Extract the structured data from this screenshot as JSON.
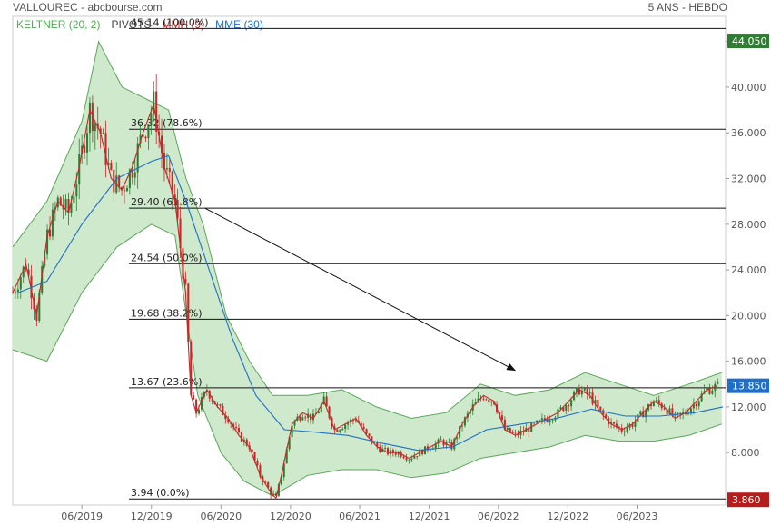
{
  "header": {
    "title": "VALLOUREC - abcbourse.com",
    "period": "5 ANS - HEBDO",
    "legend": [
      {
        "label": "KELTNER (20, 2)",
        "color": "#4caf50"
      },
      {
        "label": "PIVOTS",
        "color": "#444444"
      },
      {
        "label": "MMH (9)",
        "color": "#c62828"
      },
      {
        "label": "MME (30)",
        "color": "#1e6fc8"
      }
    ]
  },
  "colors": {
    "keltner_fill": "#cfe9cc",
    "keltner_line": "#5aa65a",
    "candle_up": "#2e7d32",
    "candle_down": "#c62828",
    "mmh": "#c62828",
    "mme": "#1e6fc8",
    "badge_high": "#2e7d32",
    "badge_last": "#1e6fc8",
    "badge_low": "#b71c1c"
  },
  "chart_data": {
    "type": "candlestick",
    "ylim": [
      3.4,
      46.2
    ],
    "xlim": [
      "2018-12-01",
      "2024-01-20"
    ],
    "y_ticks": [
      "8.000",
      "12.000",
      "16.000",
      "20.000",
      "24.000",
      "28.000",
      "32.000",
      "36.000",
      "40.000",
      "44.000"
    ],
    "x_ticks": [
      "06/2019",
      "12/2019",
      "06/2020",
      "12/2020",
      "06/2021",
      "12/2021",
      "06/2022",
      "12/2022",
      "06/2023"
    ],
    "fib_levels": [
      {
        "value": 45.14,
        "label": "45.14  (100.0%)"
      },
      {
        "value": 36.32,
        "label": "36.32  (78.6%)"
      },
      {
        "value": 29.4,
        "label": "29.40  (61.8%)"
      },
      {
        "value": 24.54,
        "label": "24.54  (50.0%)"
      },
      {
        "value": 19.68,
        "label": "19.68  (38.2%)"
      },
      {
        "value": 13.67,
        "label": "13.67  (23.6%)"
      },
      {
        "value": 3.94,
        "label": "3.94  (0.0%)"
      }
    ],
    "price_badges": [
      {
        "label": "44.050",
        "value": 44.05,
        "role": "high"
      },
      {
        "label": "13.850",
        "value": 13.85,
        "role": "last"
      },
      {
        "label": "3.860",
        "value": 3.86,
        "role": "low"
      }
    ],
    "trend_arrow": {
      "from": [
        "2020-04-20",
        29.4
      ],
      "to": [
        "2022-07-15",
        15.2
      ]
    },
    "close_path": [
      [
        "2018-12-01",
        22.0
      ],
      [
        "2019-01-05",
        24.5
      ],
      [
        "2019-02-02",
        20.0
      ],
      [
        "2019-03-02",
        27.0
      ],
      [
        "2019-03-30",
        30.0
      ],
      [
        "2019-04-27",
        29.0
      ],
      [
        "2019-05-25",
        33.0
      ],
      [
        "2019-06-22",
        38.0
      ],
      [
        "2019-07-20",
        36.0
      ],
      [
        "2019-08-17",
        32.0
      ],
      [
        "2019-09-14",
        31.0
      ],
      [
        "2019-10-12",
        33.0
      ],
      [
        "2019-11-09",
        36.0
      ],
      [
        "2019-12-07",
        38.5
      ],
      [
        "2020-01-04",
        33.0
      ],
      [
        "2020-02-01",
        30.0
      ],
      [
        "2020-02-29",
        22.0
      ],
      [
        "2020-03-14",
        13.0
      ],
      [
        "2020-03-28",
        11.5
      ],
      [
        "2020-04-25",
        13.5
      ],
      [
        "2020-05-23",
        12.0
      ],
      [
        "2020-06-20",
        11.0
      ],
      [
        "2020-07-18",
        9.5
      ],
      [
        "2020-08-15",
        8.5
      ],
      [
        "2020-09-12",
        6.0
      ],
      [
        "2020-10-10",
        4.5
      ],
      [
        "2020-10-24",
        4.0
      ],
      [
        "2020-11-07",
        6.0
      ],
      [
        "2020-12-05",
        10.5
      ],
      [
        "2021-01-02",
        11.5
      ],
      [
        "2021-01-30",
        11.0
      ],
      [
        "2021-02-27",
        12.5
      ],
      [
        "2021-03-27",
        10.0
      ],
      [
        "2021-04-24",
        10.5
      ],
      [
        "2021-05-22",
        11.0
      ],
      [
        "2021-06-19",
        9.5
      ],
      [
        "2021-07-17",
        8.5
      ],
      [
        "2021-08-14",
        8.0
      ],
      [
        "2021-09-11",
        8.0
      ],
      [
        "2021-10-09",
        7.5
      ],
      [
        "2021-11-06",
        8.0
      ],
      [
        "2021-12-04",
        8.5
      ],
      [
        "2022-01-01",
        9.0
      ],
      [
        "2022-01-29",
        8.5
      ],
      [
        "2022-02-26",
        10.5
      ],
      [
        "2022-03-26",
        12.0
      ],
      [
        "2022-04-23",
        13.0
      ],
      [
        "2022-05-21",
        12.5
      ],
      [
        "2022-06-18",
        10.0
      ],
      [
        "2022-07-16",
        9.5
      ],
      [
        "2022-08-13",
        10.0
      ],
      [
        "2022-09-10",
        10.5
      ],
      [
        "2022-10-08",
        11.0
      ],
      [
        "2022-11-05",
        11.5
      ],
      [
        "2022-12-03",
        12.5
      ],
      [
        "2022-12-31",
        13.5
      ],
      [
        "2023-01-28",
        13.0
      ],
      [
        "2023-02-25",
        11.5
      ],
      [
        "2023-03-25",
        10.5
      ],
      [
        "2023-04-22",
        10.0
      ],
      [
        "2023-05-20",
        10.5
      ],
      [
        "2023-06-17",
        11.5
      ],
      [
        "2023-07-15",
        12.5
      ],
      [
        "2023-08-12",
        12.0
      ],
      [
        "2023-09-09",
        11.0
      ],
      [
        "2023-10-07",
        11.5
      ],
      [
        "2023-11-04",
        12.5
      ],
      [
        "2023-12-02",
        13.5
      ],
      [
        "2023-12-30",
        13.85
      ]
    ],
    "mme_path": [
      [
        "2018-12-15",
        22.0
      ],
      [
        "2019-03-01",
        23.0
      ],
      [
        "2019-06-01",
        28.0
      ],
      [
        "2019-09-01",
        32.0
      ],
      [
        "2019-12-01",
        33.5
      ],
      [
        "2020-01-15",
        34.0
      ],
      [
        "2020-03-01",
        30.0
      ],
      [
        "2020-05-01",
        24.0
      ],
      [
        "2020-07-01",
        18.0
      ],
      [
        "2020-09-01",
        13.0
      ],
      [
        "2020-11-15",
        10.0
      ],
      [
        "2021-02-01",
        9.8
      ],
      [
        "2021-05-01",
        9.5
      ],
      [
        "2021-08-01",
        8.8
      ],
      [
        "2021-11-01",
        8.2
      ],
      [
        "2022-02-01",
        8.5
      ],
      [
        "2022-05-01",
        10.0
      ],
      [
        "2022-08-01",
        10.5
      ],
      [
        "2022-11-01",
        11.0
      ],
      [
        "2023-02-01",
        11.8
      ],
      [
        "2023-05-01",
        11.2
      ],
      [
        "2023-08-01",
        11.2
      ],
      [
        "2023-11-01",
        11.5
      ],
      [
        "2024-01-13",
        12.0
      ]
    ],
    "keltner_upper": [
      [
        "2018-12-01",
        26.0
      ],
      [
        "2019-03-01",
        30.0
      ],
      [
        "2019-06-01",
        37.0
      ],
      [
        "2019-07-15",
        44.0
      ],
      [
        "2019-09-15",
        40.0
      ],
      [
        "2019-11-15",
        39.0
      ],
      [
        "2020-01-15",
        38.0
      ],
      [
        "2020-03-01",
        32.0
      ],
      [
        "2020-04-15",
        28.0
      ],
      [
        "2020-06-15",
        20.0
      ],
      [
        "2020-08-15",
        16.0
      ],
      [
        "2020-10-15",
        13.0
      ],
      [
        "2021-01-15",
        13.0
      ],
      [
        "2021-04-15",
        13.5
      ],
      [
        "2021-07-15",
        12.0
      ],
      [
        "2021-10-15",
        11.0
      ],
      [
        "2022-01-15",
        11.5
      ],
      [
        "2022-04-15",
        14.0
      ],
      [
        "2022-07-15",
        13.0
      ],
      [
        "2022-10-15",
        13.5
      ],
      [
        "2023-01-15",
        15.0
      ],
      [
        "2023-04-15",
        14.0
      ],
      [
        "2023-07-15",
        13.0
      ],
      [
        "2023-10-15",
        14.0
      ],
      [
        "2024-01-10",
        15.0
      ]
    ],
    "keltner_lower": [
      [
        "2018-12-01",
        17.0
      ],
      [
        "2019-03-01",
        16.0
      ],
      [
        "2019-06-01",
        22.0
      ],
      [
        "2019-09-01",
        26.0
      ],
      [
        "2019-12-01",
        28.0
      ],
      [
        "2020-02-01",
        27.0
      ],
      [
        "2020-04-01",
        13.0
      ],
      [
        "2020-06-01",
        8.0
      ],
      [
        "2020-08-01",
        5.5
      ],
      [
        "2020-10-15",
        4.2
      ],
      [
        "2021-01-15",
        6.0
      ],
      [
        "2021-04-15",
        6.5
      ],
      [
        "2021-07-15",
        6.5
      ],
      [
        "2021-10-15",
        5.8
      ],
      [
        "2022-01-15",
        6.2
      ],
      [
        "2022-04-15",
        7.5
      ],
      [
        "2022-07-15",
        8.0
      ],
      [
        "2022-10-15",
        8.5
      ],
      [
        "2023-01-15",
        9.5
      ],
      [
        "2023-04-15",
        9.0
      ],
      [
        "2023-07-15",
        9.0
      ],
      [
        "2023-10-15",
        9.5
      ],
      [
        "2024-01-10",
        10.5
      ]
    ]
  }
}
